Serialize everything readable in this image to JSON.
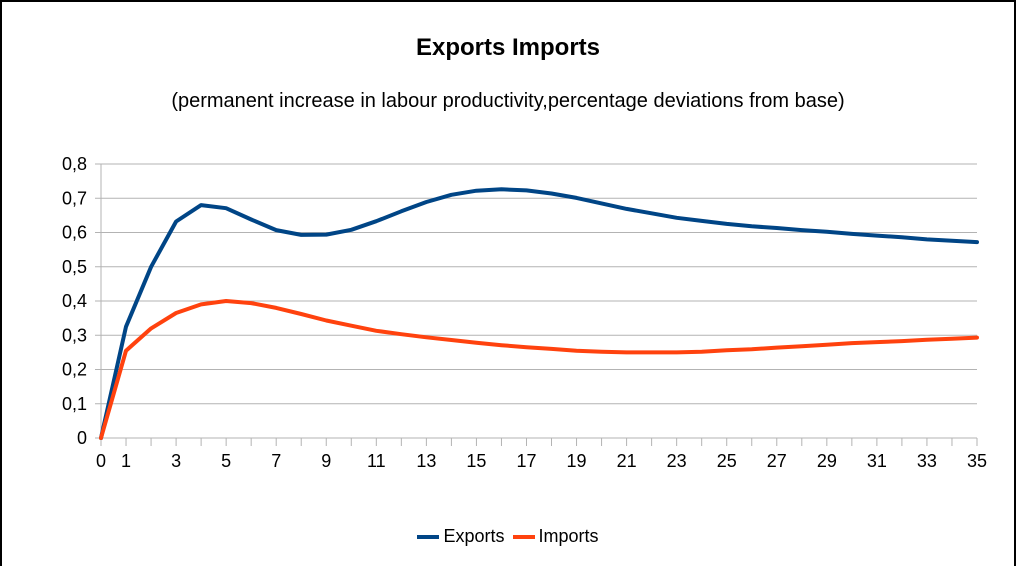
{
  "chart_data": {
    "type": "line",
    "title": "Exports Imports",
    "subtitle": "(permanent increase in labour productivity,percentage deviations from base)",
    "x": [
      0,
      1,
      2,
      3,
      4,
      5,
      6,
      7,
      8,
      9,
      10,
      11,
      12,
      13,
      14,
      15,
      16,
      17,
      18,
      19,
      20,
      21,
      22,
      23,
      24,
      25,
      26,
      27,
      28,
      29,
      30,
      31,
      32,
      33,
      34,
      35
    ],
    "x_tick_labels": [
      "0",
      "1",
      "3",
      "5",
      "7",
      "9",
      "11",
      "13",
      "15",
      "17",
      "19",
      "21",
      "23",
      "25",
      "27",
      "29",
      "31",
      "33",
      "35"
    ],
    "y_tick_labels": [
      "0",
      "0,1",
      "0,2",
      "0,3",
      "0,4",
      "0,5",
      "0,6",
      "0,7",
      "0,8"
    ],
    "ylim": [
      0,
      0.8
    ],
    "xlim": [
      0,
      35
    ],
    "grid": "horizontal",
    "legend_position": "bottom",
    "series": [
      {
        "name": "Exports",
        "color": "#004586",
        "values": [
          0.0,
          0.325,
          0.5,
          0.632,
          0.68,
          0.671,
          0.638,
          0.607,
          0.593,
          0.594,
          0.608,
          0.633,
          0.662,
          0.689,
          0.71,
          0.722,
          0.726,
          0.723,
          0.714,
          0.701,
          0.685,
          0.669,
          0.656,
          0.643,
          0.634,
          0.625,
          0.618,
          0.613,
          0.607,
          0.602,
          0.596,
          0.591,
          0.586,
          0.58,
          0.576,
          0.572
        ]
      },
      {
        "name": "Imports",
        "color": "#ff420e",
        "values": [
          0.0,
          0.255,
          0.32,
          0.365,
          0.39,
          0.4,
          0.394,
          0.38,
          0.362,
          0.343,
          0.328,
          0.313,
          0.303,
          0.294,
          0.286,
          0.278,
          0.271,
          0.265,
          0.26,
          0.255,
          0.252,
          0.25,
          0.25,
          0.25,
          0.252,
          0.256,
          0.259,
          0.264,
          0.268,
          0.272,
          0.277,
          0.28,
          0.283,
          0.287,
          0.29,
          0.293
        ]
      }
    ]
  }
}
